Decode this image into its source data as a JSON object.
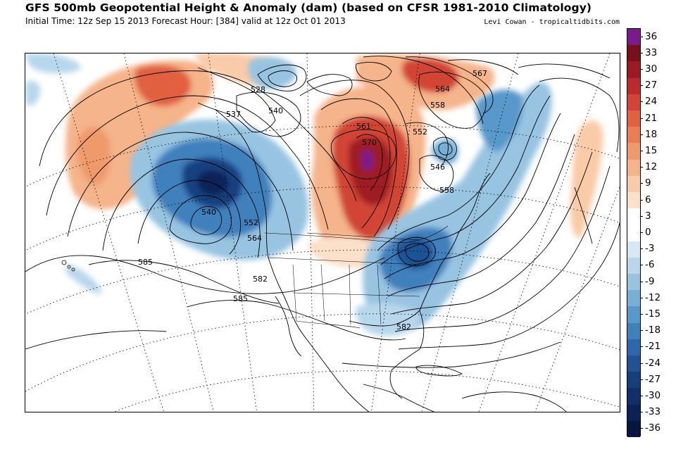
{
  "header": {
    "title": "GFS 500mb Geopotential Height & Anomaly (dam) (based on CFSR 1981-2010 Climatology)",
    "subtitle": "Initial Time: 12z Sep 15 2013 Forecast Hour: [384] valid at 12z Oct 01 2013",
    "credit": "Levi Cowan - tropicaltidbits.com"
  },
  "colorbar": {
    "levels": [
      {
        "label": "36",
        "color": "#7a1a8c"
      },
      {
        "label": "33",
        "color": "#7a0f1c"
      },
      {
        "label": "30",
        "color": "#9e1a22"
      },
      {
        "label": "27",
        "color": "#bd2a2c"
      },
      {
        "label": "24",
        "color": "#d24435"
      },
      {
        "label": "21",
        "color": "#e0613f"
      },
      {
        "label": "18",
        "color": "#ea7d52"
      },
      {
        "label": "15",
        "color": "#f09a6c"
      },
      {
        "label": "12",
        "color": "#f5b48a"
      },
      {
        "label": "9",
        "color": "#f9cba8"
      },
      {
        "label": "6",
        "color": "#fce0c9"
      },
      {
        "label": "3",
        "color": "#ffffff"
      },
      {
        "label": "0",
        "color": "#ffffff"
      },
      {
        "label": "-3",
        "color": "#d5e8f4"
      },
      {
        "label": "-6",
        "color": "#b8d7ec"
      },
      {
        "label": "-9",
        "color": "#98c4e2"
      },
      {
        "label": "-12",
        "color": "#77afd7"
      },
      {
        "label": "-15",
        "color": "#5898cb"
      },
      {
        "label": "-18",
        "color": "#3f80bd"
      },
      {
        "label": "-21",
        "color": "#2c68ab"
      },
      {
        "label": "-24",
        "color": "#1f5396"
      },
      {
        "label": "-27",
        "color": "#173f80"
      },
      {
        "label": "-30",
        "color": "#112f6b"
      },
      {
        "label": "-33",
        "color": "#0b2256"
      },
      {
        "label": "-36",
        "color": "#061640"
      }
    ]
  },
  "map": {
    "contour_labels": [
      "528",
      "537",
      "540",
      "567",
      "564",
      "558",
      "552",
      "561",
      "570",
      "546",
      "558",
      "540",
      "552",
      "564",
      "585",
      "582",
      "585",
      "582"
    ],
    "colors": {
      "land_outline": "#000000",
      "contour": "#000000",
      "graticule": "#000000"
    }
  }
}
